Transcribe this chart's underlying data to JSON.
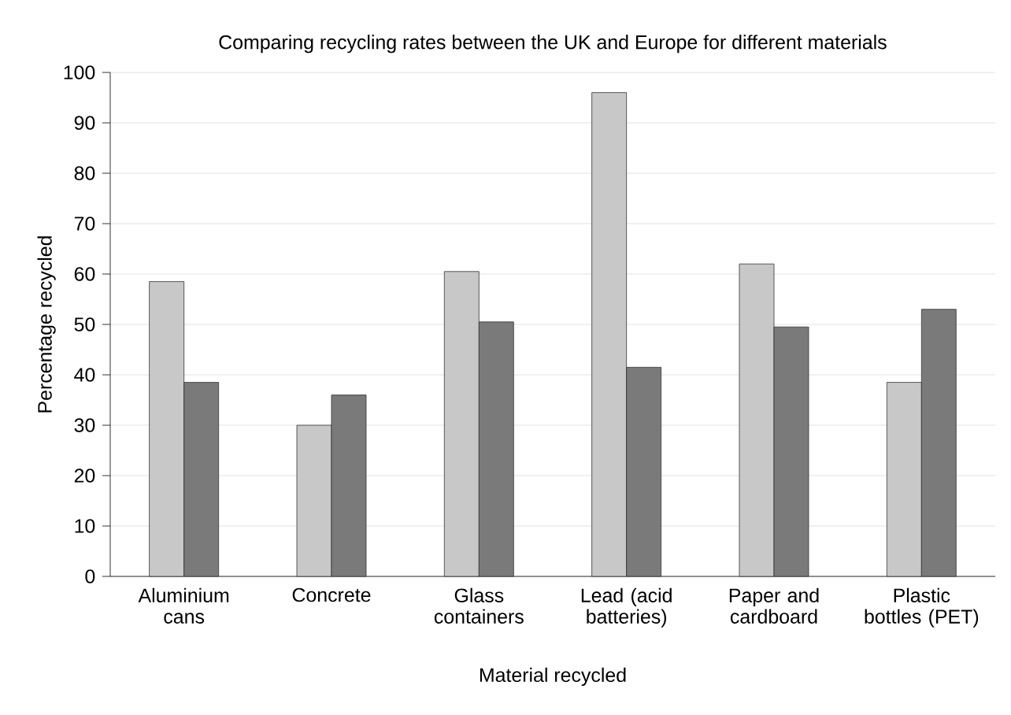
{
  "chart_data": {
    "type": "bar",
    "title": "Comparing recycling rates between the UK and Europe for different materials",
    "xlabel": "Material recycled",
    "ylabel": "Percentage recycled",
    "categories": [
      "Aluminium cans",
      "Concrete",
      "Glass containers",
      "Lead (acid batteries)",
      "Paper and cardboard",
      "Plastic bottles (PET)"
    ],
    "series": [
      {
        "color": "#c8c8c8",
        "values": [
          58.5,
          30,
          60.5,
          96,
          62,
          38.5
        ]
      },
      {
        "color": "#7a7a7a",
        "values": [
          38.5,
          36,
          50.5,
          41.5,
          49.5,
          53
        ]
      }
    ],
    "ylim": [
      0,
      100
    ],
    "yticks": [
      0,
      10,
      20,
      30,
      40,
      50,
      60,
      70,
      80,
      90,
      100
    ],
    "grid": "y"
  }
}
